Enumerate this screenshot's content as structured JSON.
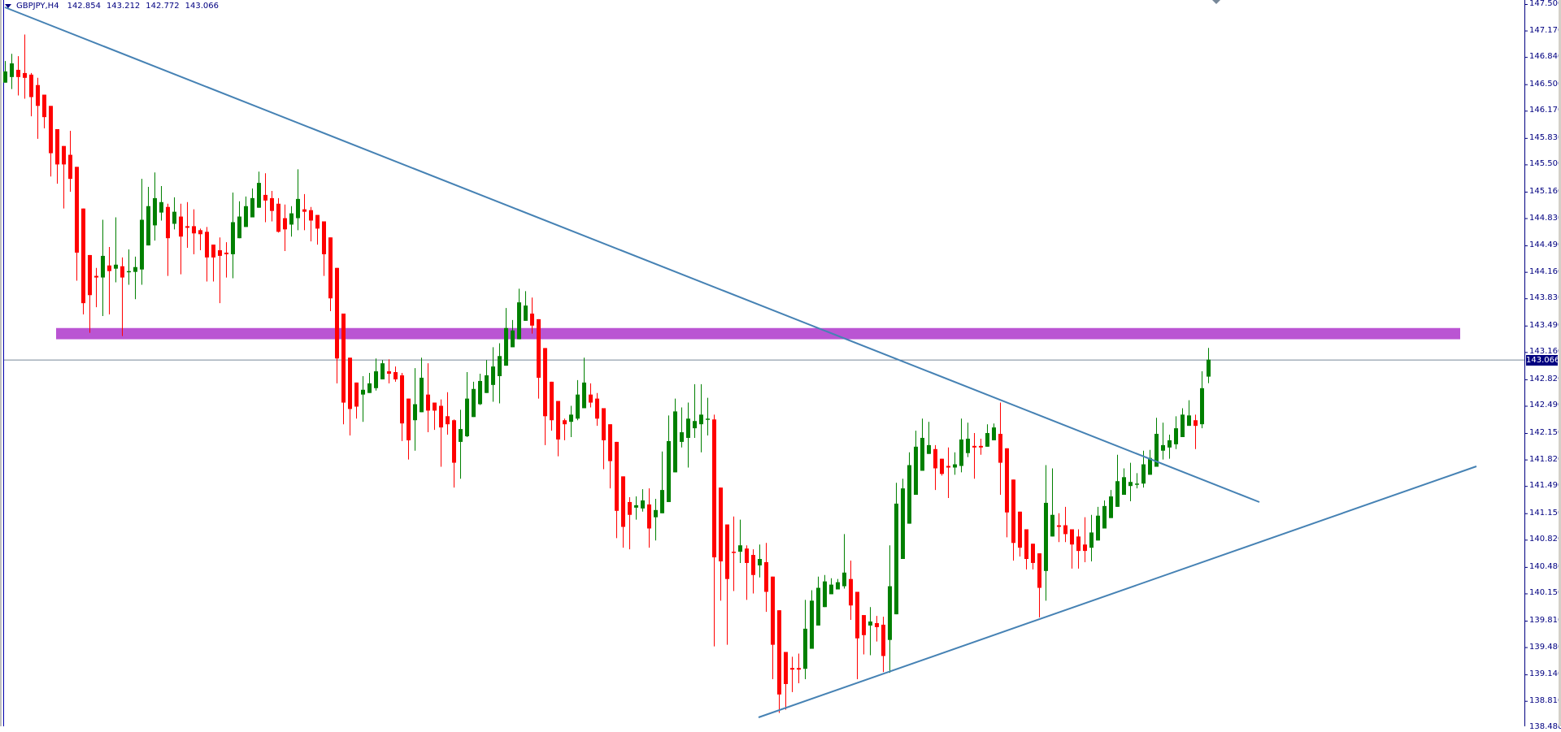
{
  "header": {
    "symbol": "GBPJPY,H4",
    "open": "142.854",
    "high": "143.212",
    "low": "142.772",
    "close": "143.066"
  },
  "chart_data": {
    "type": "candlestick",
    "title": "GBPJPY,H4",
    "ylim": [
      138.45,
      147.55
    ],
    "grid": false,
    "colors": {
      "bull": "#008000",
      "bear": "#ff0000",
      "zone": "#ba55d3",
      "trendline": "#4682b4",
      "bid_line": "#778899",
      "axis": "#000080"
    },
    "y_ticks": [
      "147.500",
      "147.170",
      "146.840",
      "146.500",
      "146.170",
      "145.830",
      "145.500",
      "145.160",
      "144.830",
      "144.490",
      "144.160",
      "143.830",
      "143.490",
      "143.160",
      "142.820",
      "142.490",
      "142.150",
      "141.820",
      "141.490",
      "141.150",
      "140.820",
      "140.480",
      "140.150",
      "139.810",
      "139.480",
      "139.140",
      "138.810",
      "138.480"
    ],
    "current_price": "143.066",
    "zone": {
      "from": 143.32,
      "to": 143.46
    },
    "candles_ohlc": [
      [
        146.52,
        146.79,
        146.52,
        146.66
      ],
      [
        146.59,
        146.88,
        146.44,
        146.76
      ],
      [
        146.68,
        146.85,
        146.36,
        146.59
      ],
      [
        146.64,
        147.12,
        146.32,
        146.58
      ],
      [
        146.62,
        146.64,
        146.1,
        146.34
      ],
      [
        146.49,
        146.58,
        145.82,
        146.23
      ],
      [
        146.37,
        146.37,
        145.95,
        146.09
      ],
      [
        146.23,
        146.23,
        145.35,
        145.64
      ],
      [
        145.94,
        145.94,
        145.26,
        145.5
      ],
      [
        145.73,
        145.73,
        144.95,
        145.5
      ],
      [
        145.62,
        145.92,
        145.16,
        145.32
      ],
      [
        145.47,
        145.47,
        144.05,
        144.4
      ],
      [
        144.95,
        144.95,
        143.63,
        143.77
      ],
      [
        144.37,
        144.37,
        143.4,
        143.87
      ],
      [
        144.11,
        144.21,
        143.72,
        144.09
      ],
      [
        144.09,
        144.81,
        143.61,
        144.36
      ],
      [
        144.24,
        144.47,
        143.63,
        144.17
      ],
      [
        144.2,
        144.84,
        144.03,
        144.25
      ],
      [
        144.23,
        144.34,
        143.36,
        144.09
      ],
      [
        144.16,
        144.44,
        144.0,
        144.17
      ],
      [
        144.16,
        144.35,
        143.82,
        144.22
      ],
      [
        144.19,
        145.32,
        144.0,
        144.81
      ],
      [
        144.49,
        145.22,
        144.49,
        144.98
      ],
      [
        144.74,
        145.4,
        144.55,
        145.08
      ],
      [
        144.9,
        145.23,
        144.8,
        145.03
      ],
      [
        144.97,
        145.01,
        144.11,
        144.58
      ],
      [
        144.76,
        145.09,
        144.69,
        144.91
      ],
      [
        144.85,
        145.01,
        144.13,
        144.6
      ],
      [
        144.73,
        145.03,
        144.46,
        144.71
      ],
      [
        144.73,
        144.94,
        144.38,
        144.64
      ],
      [
        144.68,
        144.7,
        144.43,
        144.63
      ],
      [
        144.66,
        144.72,
        144.04,
        144.34
      ],
      [
        144.5,
        144.5,
        144.04,
        144.34
      ],
      [
        144.43,
        144.59,
        143.77,
        144.36
      ],
      [
        144.4,
        144.53,
        144.09,
        144.38
      ],
      [
        144.38,
        145.15,
        144.08,
        144.78
      ],
      [
        144.58,
        145.04,
        144.58,
        144.85
      ],
      [
        144.72,
        145.1,
        144.72,
        144.98
      ],
      [
        144.84,
        145.2,
        144.84,
        145.08
      ],
      [
        144.96,
        145.41,
        144.96,
        145.27
      ],
      [
        145.12,
        145.39,
        144.78,
        145.05
      ],
      [
        145.08,
        145.17,
        144.79,
        144.92
      ],
      [
        145.01,
        145.08,
        144.65,
        144.66
      ],
      [
        144.83,
        145.0,
        144.42,
        144.69
      ],
      [
        144.75,
        144.98,
        144.6,
        144.89
      ],
      [
        144.83,
        145.44,
        144.68,
        145.07
      ],
      [
        144.94,
        145.13,
        144.68,
        144.91
      ],
      [
        144.93,
        144.97,
        144.54,
        144.8
      ],
      [
        144.87,
        144.87,
        144.5,
        144.7
      ],
      [
        144.79,
        144.79,
        144.11,
        144.38
      ],
      [
        144.59,
        144.59,
        143.67,
        143.83
      ],
      [
        144.21,
        144.21,
        142.77,
        143.08
      ],
      [
        143.64,
        143.64,
        142.26,
        142.53
      ],
      [
        143.09,
        143.09,
        142.12,
        142.45
      ],
      [
        142.78,
        142.78,
        142.33,
        142.48
      ],
      [
        142.63,
        142.86,
        142.29,
        142.69
      ],
      [
        142.65,
        142.9,
        142.65,
        142.77
      ],
      [
        142.71,
        143.08,
        142.68,
        142.92
      ],
      [
        142.82,
        143.06,
        142.82,
        143.02
      ],
      [
        142.92,
        143.07,
        142.77,
        142.89
      ],
      [
        142.91,
        142.98,
        142.79,
        142.82
      ],
      [
        142.87,
        142.9,
        142.05,
        142.27
      ],
      [
        142.58,
        142.58,
        141.82,
        142.06
      ],
      [
        142.31,
        142.96,
        141.93,
        142.51
      ],
      [
        142.41,
        143.09,
        142.41,
        142.84
      ],
      [
        142.63,
        143.02,
        142.16,
        142.43
      ],
      [
        142.53,
        142.53,
        142.19,
        142.43
      ],
      [
        142.49,
        142.57,
        141.73,
        142.22
      ],
      [
        142.36,
        142.66,
        142.13,
        142.26
      ],
      [
        142.31,
        142.32,
        141.47,
        141.78
      ],
      [
        142.04,
        142.44,
        141.58,
        142.2
      ],
      [
        142.11,
        142.91,
        142.1,
        142.58
      ],
      [
        142.35,
        142.79,
        142.35,
        142.7
      ],
      [
        142.51,
        142.89,
        142.5,
        142.8
      ],
      [
        142.65,
        143.06,
        142.65,
        142.87
      ],
      [
        142.75,
        143.22,
        142.54,
        142.98
      ],
      [
        142.86,
        143.27,
        142.52,
        143.11
      ],
      [
        142.99,
        143.71,
        142.99,
        143.46
      ],
      [
        143.22,
        143.56,
        143.22,
        143.43
      ],
      [
        143.32,
        143.95,
        143.32,
        143.78
      ],
      [
        143.55,
        143.92,
        143.55,
        143.74
      ],
      [
        143.64,
        143.84,
        143.39,
        143.49
      ],
      [
        143.57,
        143.57,
        142.58,
        142.84
      ],
      [
        143.21,
        143.21,
        142.0,
        142.36
      ],
      [
        142.79,
        142.79,
        142.18,
        142.31
      ],
      [
        142.55,
        142.55,
        141.86,
        142.07
      ],
      [
        142.31,
        142.33,
        142.06,
        142.26
      ],
      [
        142.29,
        142.49,
        142.1,
        142.38
      ],
      [
        142.33,
        142.81,
        142.31,
        142.63
      ],
      [
        142.46,
        143.09,
        142.46,
        142.78
      ],
      [
        142.63,
        142.77,
        142.47,
        142.53
      ],
      [
        142.58,
        142.65,
        142.24,
        142.33
      ],
      [
        142.46,
        142.46,
        141.7,
        142.06
      ],
      [
        142.26,
        142.26,
        141.46,
        141.8
      ],
      [
        142.04,
        142.04,
        140.84,
        141.18
      ],
      [
        141.61,
        141.61,
        140.72,
        140.98
      ],
      [
        141.29,
        141.35,
        140.7,
        141.13
      ],
      [
        141.22,
        141.36,
        141.07,
        141.25
      ],
      [
        141.21,
        141.45,
        141.17,
        141.31
      ],
      [
        141.26,
        141.46,
        140.72,
        140.96
      ],
      [
        141.1,
        141.33,
        140.81,
        141.19
      ],
      [
        141.15,
        141.92,
        141.15,
        141.44
      ],
      [
        141.29,
        142.37,
        141.29,
        142.05
      ],
      [
        141.66,
        142.58,
        141.66,
        142.42
      ],
      [
        142.04,
        142.47,
        141.97,
        142.16
      ],
      [
        142.09,
        142.53,
        141.72,
        142.33
      ],
      [
        142.21,
        142.76,
        142.09,
        142.3
      ],
      [
        142.26,
        142.76,
        141.91,
        142.38
      ],
      [
        142.32,
        142.59,
        142.12,
        142.33
      ],
      [
        142.32,
        142.38,
        139.49,
        140.6
      ],
      [
        141.47,
        141.47,
        140.06,
        140.55
      ],
      [
        141.01,
        141.01,
        139.51,
        140.33
      ],
      [
        140.67,
        141.11,
        140.18,
        140.66
      ],
      [
        140.67,
        141.07,
        140.53,
        140.75
      ],
      [
        140.71,
        140.75,
        140.07,
        140.53
      ],
      [
        140.63,
        140.7,
        140.15,
        140.38
      ],
      [
        140.5,
        140.76,
        140.35,
        140.58
      ],
      [
        140.54,
        140.78,
        139.92,
        140.17
      ],
      [
        140.36,
        140.36,
        139.08,
        139.51
      ],
      [
        139.94,
        139.94,
        138.66,
        138.89
      ],
      [
        139.42,
        139.42,
        138.7,
        139.02
      ],
      [
        139.22,
        139.36,
        138.92,
        139.2
      ],
      [
        139.22,
        139.4,
        139.03,
        139.2
      ],
      [
        139.21,
        140.07,
        139.08,
        139.71
      ],
      [
        139.46,
        140.19,
        139.46,
        140.06
      ],
      [
        139.75,
        140.36,
        139.75,
        140.22
      ],
      [
        139.98,
        140.38,
        139.98,
        140.3
      ],
      [
        140.14,
        140.34,
        140.14,
        140.26
      ],
      [
        140.2,
        140.33,
        140.2,
        140.29
      ],
      [
        140.24,
        140.89,
        140.21,
        140.41
      ],
      [
        140.33,
        140.56,
        139.82,
        140.0
      ],
      [
        140.17,
        140.17,
        139.08,
        139.59
      ],
      [
        139.88,
        139.88,
        139.39,
        139.63
      ],
      [
        139.75,
        139.98,
        139.38,
        139.8
      ],
      [
        139.78,
        139.87,
        139.55,
        139.73
      ],
      [
        139.76,
        139.86,
        139.17,
        139.37
      ],
      [
        139.57,
        140.75,
        139.16,
        140.24
      ],
      [
        139.89,
        141.53,
        139.89,
        141.27
      ],
      [
        140.58,
        141.58,
        140.58,
        141.46
      ],
      [
        141.02,
        141.91,
        141.02,
        141.75
      ],
      [
        141.38,
        142.18,
        141.38,
        141.98
      ],
      [
        141.68,
        142.33,
        141.68,
        142.09
      ],
      [
        141.89,
        142.29,
        141.89,
        142.0
      ],
      [
        141.95,
        142.0,
        141.44,
        141.71
      ],
      [
        141.83,
        141.83,
        141.62,
        141.64
      ],
      [
        141.74,
        141.97,
        141.34,
        141.72
      ],
      [
        141.72,
        141.91,
        141.63,
        141.76
      ],
      [
        141.74,
        142.33,
        141.66,
        142.07
      ],
      [
        141.9,
        142.28,
        141.85,
        142.08
      ],
      [
        141.99,
        142.15,
        141.58,
        141.97
      ],
      [
        141.99,
        142.08,
        141.88,
        141.97
      ],
      [
        141.98,
        142.26,
        141.98,
        142.15
      ],
      [
        142.06,
        142.27,
        142.06,
        142.22
      ],
      [
        142.14,
        142.53,
        141.38,
        141.78
      ],
      [
        141.96,
        141.96,
        140.85,
        141.16
      ],
      [
        141.57,
        141.57,
        140.56,
        140.78
      ],
      [
        141.17,
        141.17,
        140.61,
        140.72
      ],
      [
        140.95,
        140.95,
        140.45,
        140.58
      ],
      [
        140.77,
        140.77,
        140.45,
        140.53
      ],
      [
        140.65,
        140.65,
        139.85,
        140.22
      ],
      [
        140.43,
        141.75,
        140.06,
        141.28
      ],
      [
        140.86,
        141.71,
        140.86,
        141.13
      ],
      [
        141.0,
        141.15,
        140.79,
        140.98
      ],
      [
        141.0,
        141.23,
        140.79,
        140.89
      ],
      [
        140.95,
        140.95,
        140.46,
        140.76
      ],
      [
        140.86,
        140.95,
        140.46,
        140.68
      ],
      [
        140.76,
        141.1,
        140.54,
        140.68
      ],
      [
        140.72,
        141.13,
        140.55,
        140.91
      ],
      [
        140.81,
        141.23,
        140.81,
        141.12
      ],
      [
        140.96,
        141.31,
        140.96,
        141.24
      ],
      [
        141.09,
        141.44,
        141.09,
        141.36
      ],
      [
        141.23,
        141.88,
        141.23,
        141.55
      ],
      [
        141.38,
        141.71,
        141.38,
        141.6
      ],
      [
        141.49,
        141.78,
        141.3,
        141.54
      ],
      [
        141.51,
        141.65,
        141.46,
        141.52
      ],
      [
        141.52,
        141.93,
        141.47,
        141.76
      ],
      [
        141.63,
        141.94,
        141.63,
        141.84
      ],
      [
        141.73,
        142.34,
        141.73,
        142.14
      ],
      [
        141.93,
        142.28,
        141.82,
        142.0
      ],
      [
        141.97,
        142.13,
        141.83,
        142.06
      ],
      [
        142.01,
        142.36,
        141.95,
        142.21
      ],
      [
        142.1,
        142.46,
        142.1,
        142.38
      ],
      [
        142.24,
        142.56,
        142.24,
        142.37
      ],
      [
        142.31,
        142.38,
        141.95,
        142.24
      ],
      [
        142.26,
        142.92,
        142.21,
        142.71
      ],
      [
        142.854,
        143.212,
        142.772,
        143.066
      ]
    ]
  }
}
